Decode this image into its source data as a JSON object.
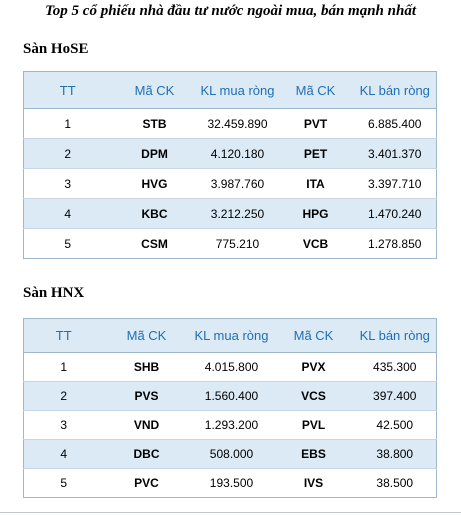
{
  "title": "Top 5 cổ phiếu nhà đầu tư nước ngoài mua, bán mạnh nhất",
  "hose": {
    "section_label": "Sàn HoSE",
    "headers": [
      "TT",
      "Mã CK",
      "KL mua ròng",
      "Mã CK",
      "KL bán ròng"
    ],
    "rows": [
      [
        "1",
        "STB",
        "32.459.890",
        "PVT",
        "6.885.400"
      ],
      [
        "2",
        "DPM",
        "4.120.180",
        "PET",
        "3.401.370"
      ],
      [
        "3",
        "HVG",
        "3.987.760",
        "ITA",
        "3.397.710"
      ],
      [
        "4",
        "KBC",
        "3.212.250",
        "HPG",
        "1.470.240"
      ],
      [
        "5",
        "CSM",
        "775.210",
        "VCB",
        "1.278.850"
      ]
    ]
  },
  "hnx": {
    "section_label": "Sàn HNX",
    "headers": [
      "TT",
      "Mã CK",
      "KL mua ròng",
      "Mã CK",
      "KL bán ròng"
    ],
    "rows": [
      [
        "1",
        "SHB",
        "4.015.800",
        "PVX",
        "435.300"
      ],
      [
        "2",
        "PVS",
        "1.560.400",
        "VCS",
        "397.400"
      ],
      [
        "3",
        "VND",
        "1.293.200",
        "PVL",
        "42.500"
      ],
      [
        "4",
        "DBC",
        "508.000",
        "EBS",
        "38.800"
      ],
      [
        "5",
        "PVC",
        "193.500",
        "IVS",
        "38.500"
      ]
    ]
  }
}
